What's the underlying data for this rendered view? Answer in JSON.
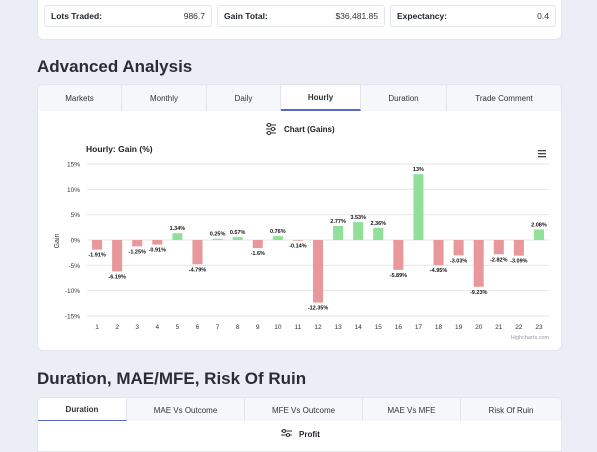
{
  "stats": [
    {
      "label": "Lots Traded:",
      "value": "986.7"
    },
    {
      "label": "Gain Total:",
      "value": "$36,481.85"
    },
    {
      "label": "Expectancy:",
      "value": "0.4"
    }
  ],
  "advanced": {
    "title": "Advanced Analysis",
    "tabs": [
      "Markets",
      "Monthly",
      "Daily",
      "Hourly",
      "Duration",
      "Trade Comment"
    ],
    "active_tab": "Hourly"
  },
  "chart_toggle": {
    "label": "Chart (Gains)",
    "icon": "sliders-icon"
  },
  "menu_icon": "hamburger-menu-icon",
  "chart_data": {
    "type": "bar",
    "title": "Hourly: Gain (%)",
    "ylabel": "Gain",
    "xlabel": "",
    "credits": "Highcharts.com",
    "categories": [
      "1",
      "2",
      "3",
      "4",
      "5",
      "6",
      "7",
      "8",
      "9",
      "10",
      "11",
      "12",
      "13",
      "14",
      "15",
      "16",
      "17",
      "18",
      "19",
      "20",
      "21",
      "22",
      "23"
    ],
    "values": [
      -1.91,
      -6.19,
      -1.25,
      -0.91,
      1.34,
      -4.79,
      0.25,
      0.57,
      -1.6,
      0.76,
      -0.14,
      -12.35,
      2.77,
      3.53,
      2.36,
      -5.89,
      13,
      -4.95,
      -3.03,
      -9.23,
      -2.82,
      -3.09,
      2.08
    ],
    "data_labels": [
      "-1.91%",
      "-6.19%",
      "-1.25%",
      "-0.91%",
      "1.34%",
      "-4.79%",
      "0.25%",
      "0.57%",
      "-1.6%",
      "0.76%",
      "-0.14%",
      "-12.35%",
      "2.77%",
      "3.53%",
      "2.36%",
      "-5.89%",
      "13%",
      "-4.95%",
      "-3.03%",
      "-9.23%",
      "-2.82%",
      "-3.09%",
      "2.08%"
    ],
    "y_ticks": [
      "15%",
      "10%",
      "5%",
      "0%",
      "-5%",
      "-10%",
      "-15%"
    ],
    "ylim": [
      -15,
      15
    ],
    "grid": true,
    "colors": {
      "positive": "#90e09a",
      "negative": "#e8979a"
    }
  },
  "duration": {
    "title": "Duration, MAE/MFE, Risk Of Ruin",
    "tabs": [
      "Duration",
      "MAE Vs Outcome",
      "MFE Vs Outcome",
      "MAE Vs MFE",
      "Risk Of Ruin"
    ],
    "active_tab": "Duration",
    "next_label": "Profit"
  }
}
